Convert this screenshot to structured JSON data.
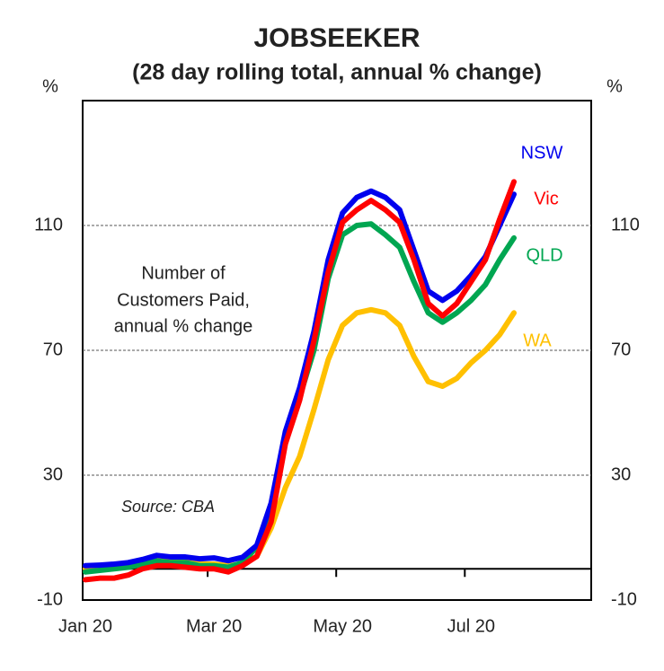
{
  "chart_data": {
    "type": "line",
    "title": "JOBSEEKER",
    "subtitle": "(28 day rolling total, annual % change)",
    "y_unit_left": "%",
    "y_unit_right": "%",
    "annotation": [
      "Number of",
      "Customers Paid,",
      "annual % change"
    ],
    "source": "Source: CBA",
    "categories": [
      "Jan 20",
      null,
      null,
      null,
      null,
      null,
      null,
      null,
      null,
      "Mar 20",
      null,
      null,
      null,
      null,
      null,
      null,
      null,
      null,
      "May 20",
      null,
      null,
      null,
      null,
      null,
      null,
      null,
      null,
      "Jul 20",
      null,
      null,
      null
    ],
    "ylim": [
      -10,
      150
    ],
    "yticks": [
      -10,
      30,
      70,
      110
    ],
    "grid": true,
    "series": [
      {
        "name": "NSW",
        "color": "#0000ee",
        "values": [
          1,
          1.2,
          1.5,
          2,
          3,
          4.3,
          3.8,
          3.8,
          3.2,
          3.5,
          2.6,
          3.7,
          7.5,
          21,
          44,
          58,
          76,
          99,
          114,
          119,
          121,
          119,
          115,
          102,
          89,
          86,
          89,
          94,
          100,
          110,
          120
        ]
      },
      {
        "name": "Vic",
        "color": "#ff0000",
        "values": [
          -3.5,
          -3,
          -3,
          -2,
          0,
          1,
          1,
          0.5,
          0,
          0,
          -1,
          1,
          4,
          15,
          40,
          54,
          73,
          95,
          111,
          115,
          118,
          115,
          111,
          99,
          85,
          81,
          85,
          92,
          99,
          112,
          124
        ]
      },
      {
        "name": "QLD",
        "color": "#00a651",
        "values": [
          -1,
          -0.5,
          0,
          0.5,
          1.5,
          2.5,
          2,
          2,
          1,
          1,
          0.5,
          2,
          7,
          20,
          42,
          55,
          70,
          93,
          107,
          110,
          110.5,
          107,
          103,
          92,
          82,
          79,
          82,
          86,
          91,
          99,
          106
        ]
      },
      {
        "name": "WA",
        "color": "#ffc000",
        "values": [
          0,
          0,
          0.5,
          1,
          2,
          3,
          2.5,
          2.5,
          1.5,
          1.5,
          1,
          1.5,
          4,
          13,
          26,
          36,
          51,
          67,
          78,
          82,
          83,
          82,
          78,
          68,
          60,
          58.5,
          61,
          66,
          70,
          75,
          82
        ]
      }
    ]
  }
}
